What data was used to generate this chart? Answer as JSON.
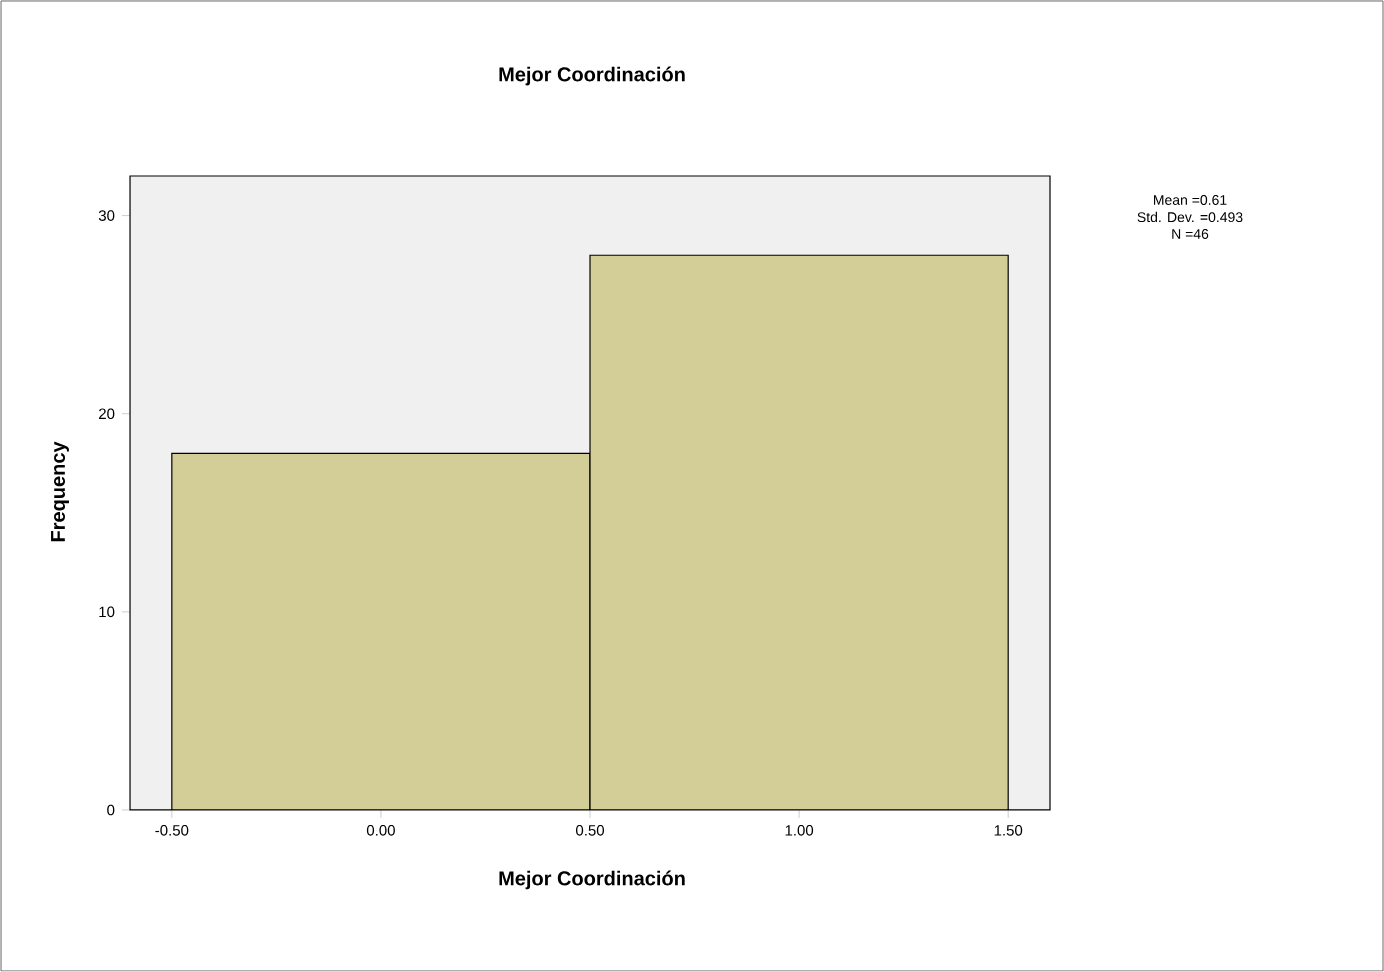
{
  "chart_data": {
    "type": "histogram",
    "title": "Mejor Coordinación",
    "xlabel": "Mejor Coordinación",
    "ylabel": "Frequency",
    "bins": [
      -0.5,
      0.5,
      1.5
    ],
    "values": [
      18,
      28
    ],
    "color": "#d3ce97",
    "xlim": [
      -0.6,
      1.6
    ],
    "ylim": [
      0,
      32
    ],
    "xticks": [
      {
        "value": -0.5,
        "label": "-0.50"
      },
      {
        "value": 0,
        "label": "0.00"
      },
      {
        "value": 0.5,
        "label": "0.50"
      },
      {
        "value": 1,
        "label": "1.00"
      },
      {
        "value": 1.5,
        "label": "1.50"
      }
    ],
    "yticks": [
      0,
      10,
      20,
      30
    ],
    "annotations": [
      "Mean =0.61",
      "Std. Dev. =0.493",
      "N =46"
    ]
  }
}
